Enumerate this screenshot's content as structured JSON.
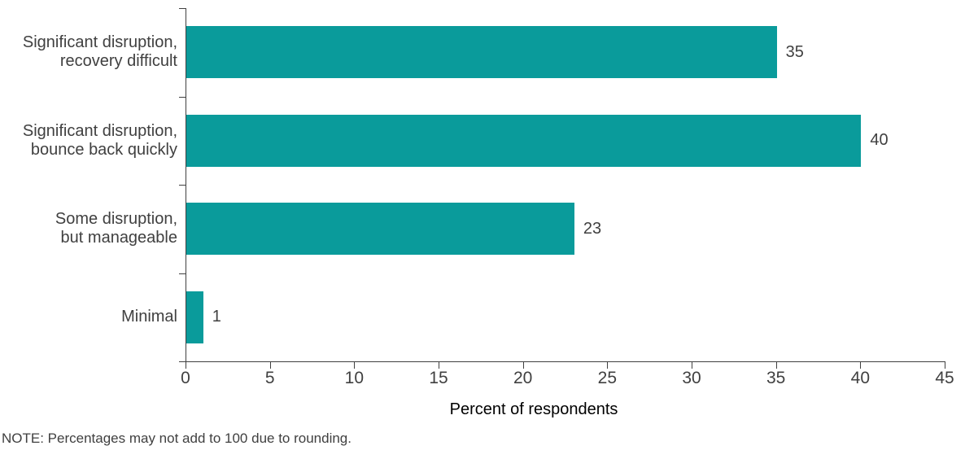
{
  "chart_data": {
    "type": "bar",
    "orientation": "horizontal",
    "title": "",
    "categories": [
      "Significant disruption,\nrecovery difficult",
      "Significant disruption,\nbounce back quickly",
      "Some disruption,\nbut manageable",
      "Minimal"
    ],
    "values": [
      35,
      40,
      23,
      1
    ],
    "data_labels": [
      "35",
      "40",
      "23",
      "1"
    ],
    "xlabel": "Percent of respondents",
    "ylabel": "",
    "xlim": [
      0,
      45
    ],
    "x_ticks": [
      "0",
      "5",
      "10",
      "15",
      "20",
      "25",
      "30",
      "35",
      "40",
      "45"
    ],
    "grid": false,
    "legend": false,
    "bar_color": "#0a9b9b",
    "axis_color": "#404040",
    "text_color": "#404040"
  },
  "note": "NOTE: Percentages may not add to 100 due to rounding."
}
